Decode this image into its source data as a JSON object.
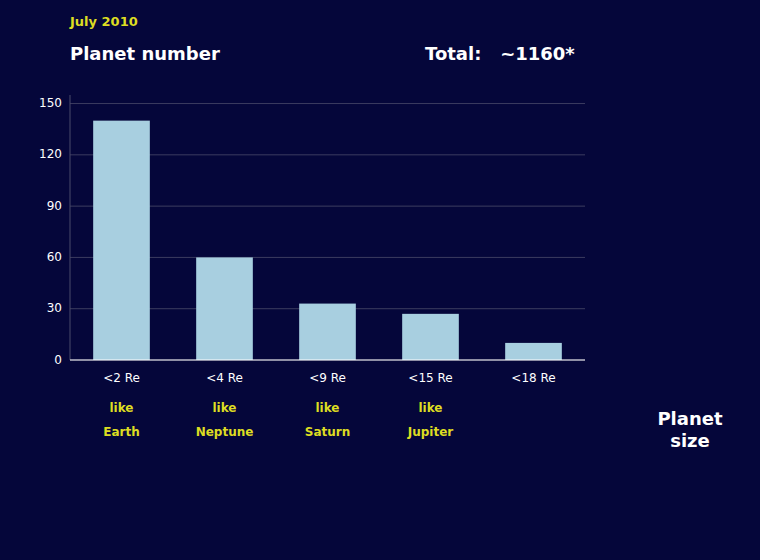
{
  "chart_data": {
    "type": "bar",
    "subtitle": "July 2010",
    "y_label": "Planet number",
    "x_label": "Planet\nsize",
    "annotations": [
      "Total:   ~1160*"
    ],
    "categories": [
      "<2 Re",
      "<4 Re",
      "<9 Re",
      "<15 Re",
      "<18 Re"
    ],
    "category_notes": [
      "like\nEarth",
      "like\nNeptune",
      "like\nSaturn",
      "like\nJupiter",
      null
    ],
    "values": [
      140,
      60,
      33,
      27,
      10
    ],
    "color": "#a8cfe0",
    "ylim": [
      0,
      155
    ],
    "yticks": [
      0,
      30,
      60,
      90,
      120,
      150
    ],
    "grid": true
  }
}
